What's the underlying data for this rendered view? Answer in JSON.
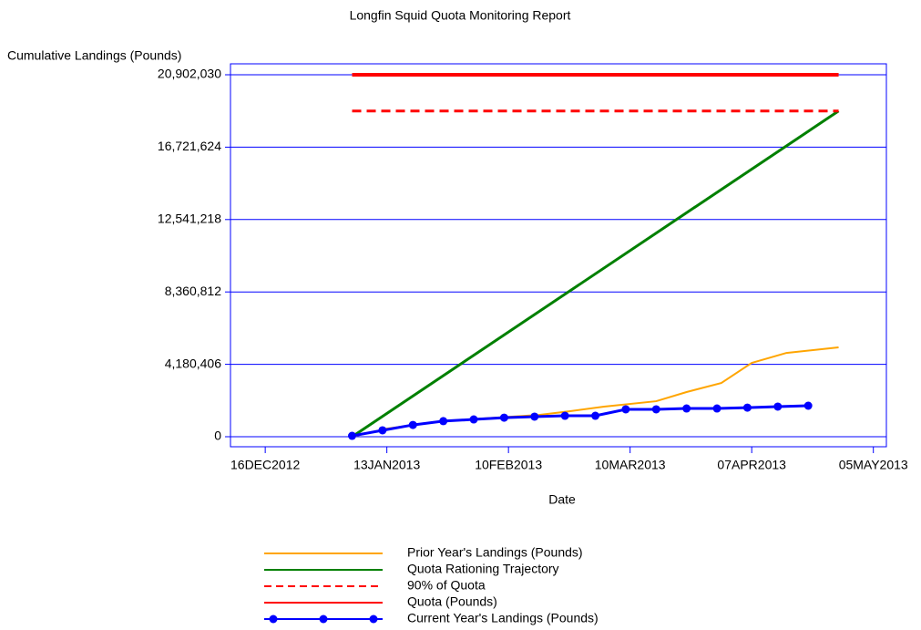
{
  "chart_data": {
    "type": "line",
    "title": "Longfin Squid Quota Monitoring Report",
    "y_label": "Cumulative Landings (Pounds)",
    "x_label": "Date",
    "xlim": [
      "2012-12-08",
      "2013-05-08"
    ],
    "xticks": [
      {
        "value": "2012-12-16",
        "label": "16DEC2012"
      },
      {
        "value": "2013-01-13",
        "label": "13JAN2013"
      },
      {
        "value": "2013-02-10",
        "label": "10FEB2013"
      },
      {
        "value": "2013-03-10",
        "label": "10MAR2013"
      },
      {
        "value": "2013-04-07",
        "label": "07APR2013"
      },
      {
        "value": "2013-05-05",
        "label": "05MAY2013"
      }
    ],
    "ylim": [
      -579150,
      21533836
    ],
    "yticks": [
      0,
      {
        "value": 4180406,
        "label": "4,180,406"
      },
      {
        "value": 8360812,
        "label": "8,360,812"
      },
      {
        "value": 12541218,
        "label": "12,541,218"
      },
      {
        "value": 16721624,
        "label": "16,721,624"
      },
      {
        "value": 20902030,
        "label": "20,902,030"
      }
    ],
    "grid": true,
    "series": [
      {
        "name": "Prior Year's Landings (Pounds)",
        "color": "#ffa500",
        "width": 2,
        "linestyle": "solid",
        "x": [
          "2013-01-05",
          "2013-01-13",
          "2013-01-26",
          "2013-02-07",
          "2013-02-17",
          "2013-02-24",
          "2013-03-04",
          "2013-03-16",
          "2013-03-23",
          "2013-03-31",
          "2013-04-07",
          "2013-04-15",
          "2013-04-27"
        ],
        "values": [
          0,
          470000,
          900000,
          1100000,
          1260000,
          1470000,
          1740000,
          2050000,
          2580000,
          3100000,
          4260000,
          4840000,
          5160000
        ]
      },
      {
        "name": "Quota Rationing Trajectory",
        "color": "#008000",
        "width": 3,
        "linestyle": "solid",
        "x": [
          "2013-01-05",
          "2013-04-27"
        ],
        "values": [
          0,
          18811827
        ]
      },
      {
        "name": "90% of Quota",
        "color": "#ff0000",
        "width": 3,
        "linestyle": "dashed",
        "x": [
          "2013-01-05",
          "2013-04-27"
        ],
        "values": [
          18811827,
          18811827
        ]
      },
      {
        "name": "Quota (Pounds)",
        "color": "#ff0000",
        "width": 4,
        "linestyle": "solid",
        "x": [
          "2013-01-05",
          "2013-04-27"
        ],
        "values": [
          20902030,
          20902030
        ]
      },
      {
        "name": "Current Year's Landings (Pounds)",
        "color": "#0000ff",
        "width": 3,
        "linestyle": "solid",
        "marker": "circle",
        "x": [
          "2013-01-05",
          "2013-01-12",
          "2013-01-19",
          "2013-01-26",
          "2013-02-02",
          "2013-02-09",
          "2013-02-16",
          "2013-02-23",
          "2013-03-02",
          "2013-03-09",
          "2013-03-16",
          "2013-03-23",
          "2013-03-30",
          "2013-04-06",
          "2013-04-13",
          "2013-04-20"
        ],
        "values": [
          50000,
          370000,
          680000,
          900000,
          1000000,
          1100000,
          1160000,
          1210000,
          1210000,
          1580000,
          1580000,
          1630000,
          1630000,
          1680000,
          1740000,
          1790000
        ]
      }
    ]
  }
}
